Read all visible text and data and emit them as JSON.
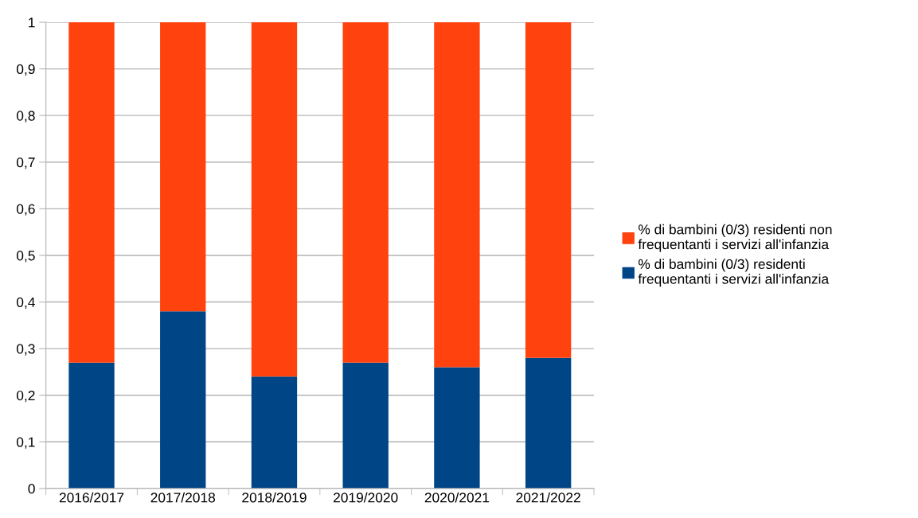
{
  "chart_data": {
    "type": "bar",
    "stacked": true,
    "categories": [
      "2016/2017",
      "2017/2018",
      "2018/2019",
      "2019/2020",
      "2020/2021",
      "2021/2022"
    ],
    "series": [
      {
        "name": "% di bambini (0/3) residenti frequentanti i servizi all'infanzia",
        "color": "#004586",
        "values": [
          0.27,
          0.38,
          0.24,
          0.27,
          0.26,
          0.28
        ]
      },
      {
        "name": "% di bambini (0/3) residenti non frequentanti i servizi all'infanzia",
        "color": "#ff420e",
        "values": [
          0.73,
          0.62,
          0.76,
          0.73,
          0.74,
          0.72
        ]
      }
    ],
    "ylim": [
      0,
      1
    ],
    "yticks": [
      0,
      {
        "value": 0.1,
        "label": "0,1"
      },
      {
        "value": 0.2,
        "label": "0,2"
      },
      {
        "value": 0.3,
        "label": "0,3"
      },
      {
        "value": 0.4,
        "label": "0,4"
      },
      {
        "value": 0.5,
        "label": "0,5"
      },
      {
        "value": 0.6,
        "label": "0,6"
      },
      {
        "value": 0.7,
        "label": "0,7"
      },
      {
        "value": 0.8,
        "label": "0,8"
      },
      {
        "value": 0.9,
        "label": "0,9"
      },
      1
    ],
    "grid": "y",
    "legend": "right"
  }
}
